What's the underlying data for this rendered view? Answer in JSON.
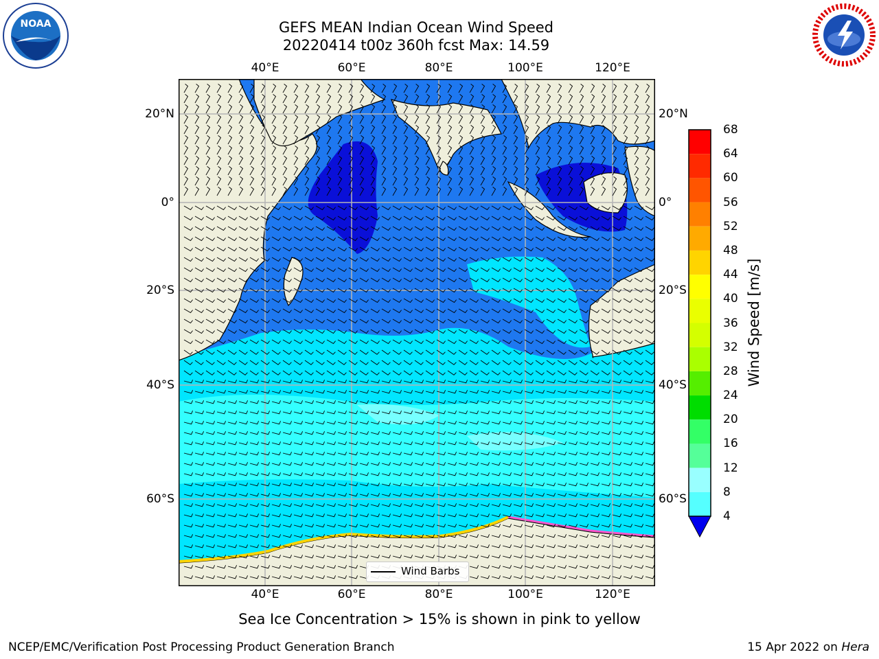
{
  "title": {
    "line1": "GEFS MEAN Indian Ocean Wind Speed",
    "line2": "20220414 t00z 360h fcst   Max: 14.59"
  },
  "map": {
    "lon_ticks": [
      "40°E",
      "60°E",
      "80°E",
      "100°E",
      "120°E"
    ],
    "lat_ticks": [
      "20°N",
      "0°",
      "20°S",
      "40°S",
      "60°S"
    ],
    "land_color": "#efefdc",
    "gridline_color": "#b4b4b4"
  },
  "colorbar": {
    "label": "Wind Speed [m/s]",
    "ticks": [
      "68",
      "64",
      "60",
      "56",
      "52",
      "48",
      "44",
      "40",
      "36",
      "32",
      "28",
      "24",
      "20",
      "16",
      "12",
      "8",
      "4"
    ],
    "colors": [
      "#ff0000",
      "#ff2a00",
      "#ff5500",
      "#ff8000",
      "#ffaa00",
      "#ffd400",
      "#ffff00",
      "#eaff00",
      "#d4ff00",
      "#aaff00",
      "#55ee00",
      "#00dd00",
      "#33ff66",
      "#55ff99",
      "#99ffff",
      "#55ffff",
      "#00ffff",
      "#00d0ff",
      "#0080ff",
      "#0000ee"
    ]
  },
  "legend": {
    "label": "Wind Barbs"
  },
  "sea_ice_note": "Sea Ice Concentration > 15% is shown in pink to yellow",
  "footer": {
    "left": "NCEP/EMC/Verification Post Processing Product Generation Branch",
    "date": "15 Apr 2022 on",
    "host": "Hera"
  },
  "logos": {
    "left": "NOAA",
    "right": "NATIONAL WEATHER SERVICE"
  }
}
